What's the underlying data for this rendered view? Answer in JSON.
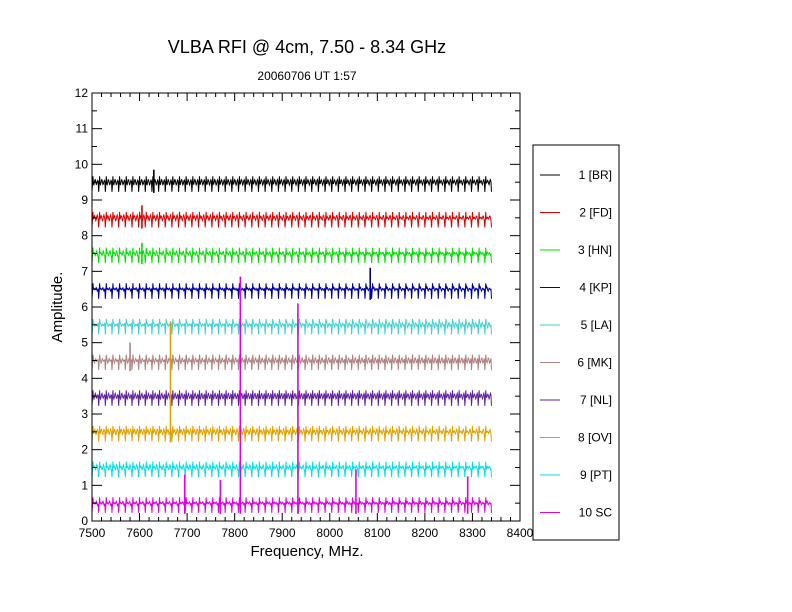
{
  "chart_data": {
    "type": "line",
    "title": "VLBA RFI @ 4cm, 7.50 - 8.34 GHz",
    "subtitle": "20060706   UT 1:57",
    "xlabel": "Frequency, MHz.",
    "ylabel": "Amplitude.",
    "xlim": [
      7500,
      8400
    ],
    "ylim": [
      0,
      12
    ],
    "x_ticks": [
      "7500",
      "7600",
      "7700",
      "7800",
      "7900",
      "8000",
      "8100",
      "8200",
      "8300",
      "8400"
    ],
    "y_ticks": [
      "0",
      "1",
      "2",
      "3",
      "4",
      "5",
      "6",
      "7",
      "8",
      "9",
      "10",
      "11",
      "12"
    ],
    "data_x_range": [
      7500,
      8340
    ],
    "legend_position": "right",
    "grid": false,
    "series": [
      {
        "name": "1 [BR]",
        "color": "#000000",
        "baseline": 9.5,
        "spikes": [
          [
            7630,
            9.85
          ]
        ]
      },
      {
        "name": "2 [FD]",
        "color": "#e00000",
        "baseline": 8.5,
        "spikes": [
          [
            7605,
            8.85
          ]
        ]
      },
      {
        "name": "3 [HN]",
        "color": "#00e000",
        "baseline": 7.5,
        "spikes": [
          [
            7605,
            7.8
          ]
        ]
      },
      {
        "name": "4 [KP]",
        "color": "#0000a0",
        "baseline": 6.5,
        "spikes": [
          [
            8085,
            7.1
          ]
        ]
      },
      {
        "name": "5 [LA]",
        "color": "#40d0d0",
        "baseline": 5.5,
        "spikes": []
      },
      {
        "name": "6 [MK]",
        "color": "#b08080",
        "baseline": 4.5,
        "spikes": [
          [
            7580,
            5.0
          ]
        ]
      },
      {
        "name": "7 [NL]",
        "color": "#6020a0",
        "baseline": 3.5,
        "spikes": []
      },
      {
        "name": "8 [OV]",
        "color": "#e0a000",
        "baseline": 2.5,
        "spikes": [
          [
            7665,
            5.6
          ]
        ]
      },
      {
        "name": "9 [PT]",
        "color": "#00e0e0",
        "baseline": 1.5,
        "spikes": []
      },
      {
        "name": "10 SC",
        "color": "#e000e0",
        "baseline": 0.5,
        "spikes": [
          [
            7812,
            6.85
          ],
          [
            7933,
            6.1
          ],
          [
            7695,
            1.3
          ],
          [
            7770,
            1.15
          ],
          [
            8055,
            1.45
          ],
          [
            8290,
            1.25
          ]
        ]
      }
    ]
  }
}
